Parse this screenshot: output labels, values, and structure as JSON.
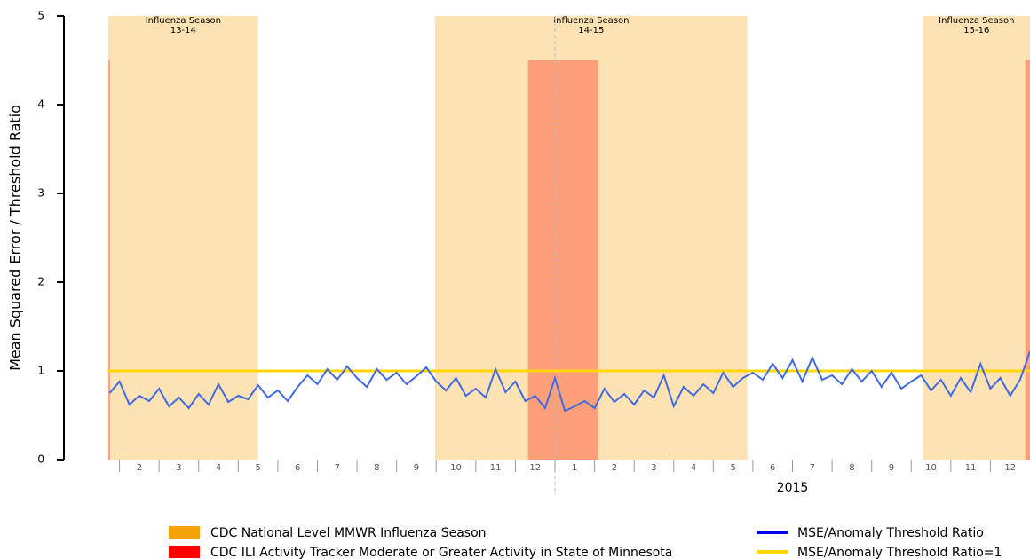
{
  "chart_data": {
    "type": "line",
    "ylabel": "Mean Squared Error / Threshold Ratio",
    "ylim": [
      0,
      5
    ],
    "yticks": [
      0,
      1,
      2,
      3,
      4,
      5
    ],
    "xlim": [
      0,
      24
    ],
    "xticks": [
      {
        "value": 1,
        "label": "2"
      },
      {
        "value": 2,
        "label": "3"
      },
      {
        "value": 3,
        "label": "4"
      },
      {
        "value": 4,
        "label": "5"
      },
      {
        "value": 5,
        "label": "6"
      },
      {
        "value": 6,
        "label": "7"
      },
      {
        "value": 7,
        "label": "8"
      },
      {
        "value": 8,
        "label": "9"
      },
      {
        "value": 9,
        "label": "10"
      },
      {
        "value": 10,
        "label": "11"
      },
      {
        "value": 11,
        "label": "12"
      },
      {
        "value": 12,
        "label": "1"
      },
      {
        "value": 13,
        "label": "2"
      },
      {
        "value": 14,
        "label": "3"
      },
      {
        "value": 15,
        "label": "4"
      },
      {
        "value": 16,
        "label": "5"
      },
      {
        "value": 17,
        "label": "6"
      },
      {
        "value": 18,
        "label": "7"
      },
      {
        "value": 19,
        "label": "8"
      },
      {
        "value": 20,
        "label": "9"
      },
      {
        "value": 21,
        "label": "10"
      },
      {
        "value": 22,
        "label": "11"
      },
      {
        "value": 23,
        "label": "12"
      }
    ],
    "year_label": {
      "text": "2015",
      "start": 12,
      "end": 24
    },
    "year_divider": 12,
    "seasons": {
      "name": "CDC National Level MMWR Influenza Season",
      "color": "#fde2b3",
      "legend_color": "#f5a300",
      "items": [
        {
          "label": "Influenza Season",
          "period": "13-14",
          "start": 0.72,
          "end": 4.5
        },
        {
          "label": "Influenza Season",
          "period": "14-15",
          "start": 8.97,
          "end": 16.86
        },
        {
          "label": "Influenza Season",
          "period": "15-16",
          "start": 21.3,
          "end": 24
        }
      ]
    },
    "activity": {
      "name": "CDC ILI Activity Tracker Moderate or Greater Activity in State of Minnesota",
      "color": "#ff9f7a",
      "legend_color": "#ff0000",
      "items": [
        {
          "start": 0.72,
          "end": 0.76,
          "height": 4.5
        },
        {
          "start": 11.32,
          "end": 13.1,
          "height": 4.5
        },
        {
          "start": 23.88,
          "end": 24,
          "height": 4.5
        }
      ]
    },
    "reference": {
      "name": "MSE/Anomaly Threshold Ratio=1",
      "value": 1,
      "color": "#ffd700"
    },
    "series": [
      {
        "name": "MSE/Anomaly Threshold Ratio",
        "color": "#4169e1",
        "legend_color": "#0000ee",
        "x": [
          0.75,
          1,
          1.25,
          1.5,
          1.75,
          2,
          2.25,
          2.5,
          2.75,
          3,
          3.25,
          3.5,
          3.75,
          4,
          4.25,
          4.5,
          4.75,
          5,
          5.25,
          5.5,
          5.75,
          6,
          6.25,
          6.5,
          6.75,
          7,
          7.25,
          7.5,
          7.75,
          8,
          8.25,
          8.5,
          8.75,
          9,
          9.25,
          9.5,
          9.75,
          10,
          10.25,
          10.5,
          10.75,
          11,
          11.25,
          11.5,
          11.75,
          12,
          12.25,
          12.5,
          12.75,
          13,
          13.25,
          13.5,
          13.75,
          14,
          14.25,
          14.5,
          14.75,
          15,
          15.25,
          15.5,
          15.75,
          16,
          16.25,
          16.5,
          16.75,
          17,
          17.25,
          17.5,
          17.75,
          18,
          18.25,
          18.5,
          18.75,
          19,
          19.25,
          19.5,
          19.75,
          20,
          20.25,
          20.5,
          20.75,
          21,
          21.25,
          21.5,
          21.75,
          22,
          22.25,
          22.5,
          22.75,
          23,
          23.25,
          23.5,
          23.75,
          24
        ],
        "values": [
          0.75,
          0.88,
          0.62,
          0.72,
          0.66,
          0.8,
          0.6,
          0.7,
          0.58,
          0.74,
          0.62,
          0.85,
          0.65,
          0.72,
          0.68,
          0.84,
          0.7,
          0.78,
          0.66,
          0.82,
          0.95,
          0.85,
          1.02,
          0.9,
          1.05,
          0.92,
          0.82,
          1.02,
          0.9,
          0.98,
          0.85,
          0.94,
          1.04,
          0.88,
          0.78,
          0.92,
          0.72,
          0.8,
          0.7,
          1.02,
          0.76,
          0.88,
          0.66,
          0.72,
          0.58,
          0.92,
          0.55,
          0.6,
          0.66,
          0.58,
          0.8,
          0.65,
          0.74,
          0.62,
          0.78,
          0.7,
          0.95,
          0.6,
          0.82,
          0.72,
          0.85,
          0.75,
          0.98,
          0.82,
          0.92,
          0.98,
          0.9,
          1.08,
          0.92,
          1.12,
          0.88,
          1.15,
          0.9,
          0.95,
          0.85,
          1.02,
          0.88,
          1,
          0.82,
          0.98,
          0.8,
          0.88,
          0.95,
          0.78,
          0.9,
          0.72,
          0.92,
          0.76,
          1.08,
          0.8,
          0.92,
          0.72,
          0.9,
          1.22
        ]
      }
    ]
  }
}
